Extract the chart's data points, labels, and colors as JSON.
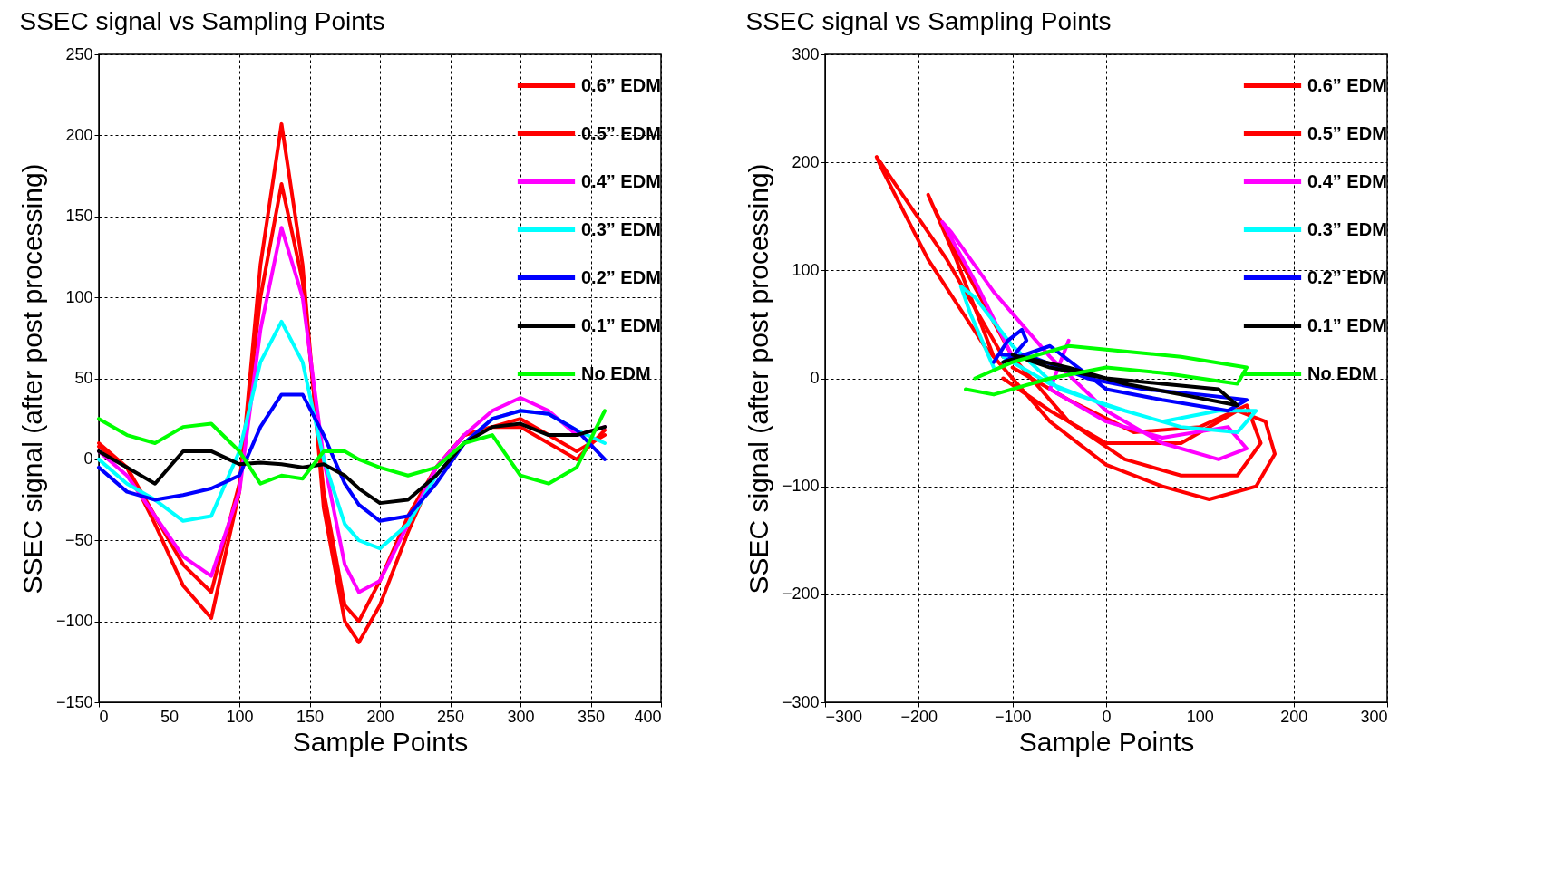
{
  "chart_data": [
    {
      "type": "line",
      "title": "SSEC signal vs Sampling Points",
      "xlabel": "Sample Points",
      "ylabel": "SSEC signal (after post processing)",
      "x": [
        0,
        20,
        40,
        60,
        80,
        100,
        115,
        130,
        145,
        160,
        175,
        185,
        200,
        220,
        240,
        260,
        280,
        300,
        320,
        340,
        360
      ],
      "xlim": [
        0,
        400
      ],
      "xticks": [
        0,
        50,
        100,
        150,
        200,
        250,
        300,
        350,
        400
      ],
      "ylim": [
        -150,
        250
      ],
      "yticks": [
        -150,
        -100,
        -50,
        0,
        50,
        100,
        150,
        200,
        250
      ],
      "grid": true,
      "legend": "top right",
      "line_style": "solid",
      "series": [
        {
          "name": "0.6” EDM",
          "color": "#ff0000",
          "values": [
            10,
            -5,
            -40,
            -78,
            -98,
            -20,
            120,
            207,
            120,
            -30,
            -100,
            -113,
            -90,
            -45,
            -5,
            15,
            20,
            25,
            15,
            5,
            15
          ]
        },
        {
          "name": "0.5” EDM",
          "color": "#ff0000",
          "values": [
            8,
            -5,
            -35,
            -65,
            -82,
            -15,
            100,
            170,
            110,
            -20,
            -90,
            -100,
            -75,
            -35,
            -5,
            15,
            20,
            20,
            10,
            0,
            18
          ]
        },
        {
          "name": "0.4” EDM",
          "color": "#ff00ff",
          "values": [
            5,
            -10,
            -35,
            -60,
            -72,
            -20,
            80,
            143,
            100,
            0,
            -65,
            -82,
            -75,
            -40,
            -5,
            15,
            30,
            38,
            30,
            15,
            20
          ]
        },
        {
          "name": "0.3” EDM",
          "color": "#00ffff",
          "values": [
            0,
            -15,
            -25,
            -38,
            -35,
            5,
            60,
            85,
            60,
            0,
            -40,
            -50,
            -55,
            -40,
            -10,
            10,
            25,
            30,
            28,
            18,
            10
          ]
        },
        {
          "name": "0.2” EDM",
          "color": "#0000ff",
          "values": [
            -5,
            -20,
            -25,
            -22,
            -18,
            -10,
            20,
            40,
            40,
            15,
            -15,
            -28,
            -38,
            -35,
            -15,
            10,
            25,
            30,
            28,
            18,
            0
          ]
        },
        {
          "name": "0.1” EDM",
          "color": "#000000",
          "values": [
            5,
            -5,
            -15,
            5,
            5,
            -3,
            -2,
            -3,
            -5,
            -3,
            -10,
            -18,
            -27,
            -25,
            -10,
            10,
            20,
            22,
            15,
            15,
            20
          ]
        },
        {
          "name": "No EDM",
          "color": "#00ff00",
          "values": [
            25,
            15,
            10,
            20,
            22,
            5,
            -15,
            -10,
            -12,
            5,
            5,
            0,
            -5,
            -10,
            -5,
            10,
            15,
            -10,
            -15,
            -5,
            30
          ]
        }
      ]
    },
    {
      "type": "line",
      "title": "SSEC signal vs Sampling Points",
      "xlabel": "Sample Points",
      "ylabel": "SSEC signal (after post processing)",
      "xlim": [
        -300,
        300
      ],
      "xticks": [
        -300,
        -200,
        -100,
        0,
        100,
        200,
        300
      ],
      "ylim": [
        -300,
        300
      ],
      "yticks": [
        -300,
        -200,
        -100,
        0,
        100,
        200,
        300
      ],
      "grid": true,
      "legend": "top right",
      "line_style": "solid",
      "series": [
        {
          "name": "0.6” EDM",
          "color": "#ff0000",
          "x": [
            -110,
            -170,
            -245,
            -240,
            -190,
            -130,
            -60,
            0,
            60,
            110,
            160,
            180,
            170,
            140,
            80,
            0,
            -60,
            -110
          ],
          "values": [
            20,
            110,
            205,
            195,
            110,
            30,
            -40,
            -80,
            -100,
            -112,
            -100,
            -70,
            -40,
            -30,
            -60,
            -60,
            -30,
            0
          ]
        },
        {
          "name": "0.5” EDM",
          "color": "#ff0000",
          "x": [
            -120,
            -160,
            -190,
            -185,
            -150,
            -100,
            -40,
            20,
            80,
            140,
            165,
            150,
            100,
            30,
            -40,
            -100
          ],
          "values": [
            20,
            110,
            170,
            160,
            100,
            20,
            -40,
            -75,
            -90,
            -90,
            -60,
            -25,
            -45,
            -50,
            -20,
            10
          ]
        },
        {
          "name": "0.4” EDM",
          "color": "#ff00ff",
          "x": [
            -100,
            -140,
            -175,
            -165,
            -120,
            -60,
            0,
            60,
            120,
            150,
            130,
            60,
            0,
            -60,
            -40
          ],
          "values": [
            20,
            90,
            145,
            135,
            80,
            20,
            -30,
            -60,
            -75,
            -65,
            -45,
            -55,
            -40,
            -10,
            35
          ]
        },
        {
          "name": "0.3” EDM",
          "color": "#00ffff",
          "x": [
            -120,
            -145,
            -155,
            -140,
            -100,
            -50,
            20,
            80,
            140,
            160,
            120,
            60,
            0,
            -60,
            -110
          ],
          "values": [
            10,
            60,
            85,
            75,
            30,
            -10,
            -30,
            -45,
            -50,
            -30,
            -30,
            -40,
            -25,
            -5,
            20
          ]
        },
        {
          "name": "0.2” EDM",
          "color": "#0000ff",
          "x": [
            -120,
            -105,
            -90,
            -85,
            -100,
            -110,
            -60,
            0,
            60,
            130,
            150,
            100,
            40,
            -20,
            -80,
            -112
          ],
          "values": [
            15,
            35,
            45,
            35,
            20,
            15,
            30,
            -10,
            -20,
            -30,
            -20,
            -15,
            -10,
            0,
            20,
            22
          ]
        },
        {
          "name": "0.1” EDM",
          "color": "#000000",
          "x": [
            -110,
            -90,
            -40,
            20,
            80,
            140,
            120,
            60,
            0,
            -60,
            -100
          ],
          "values": [
            15,
            20,
            10,
            -5,
            -15,
            -25,
            -10,
            -5,
            0,
            10,
            22
          ]
        },
        {
          "name": "No EDM",
          "color": "#00ff00",
          "x": [
            -140,
            -100,
            -40,
            20,
            80,
            150,
            140,
            60,
            0,
            -60,
            -120,
            -150
          ],
          "values": [
            0,
            15,
            30,
            25,
            20,
            10,
            -5,
            5,
            10,
            0,
            -15,
            -10
          ]
        }
      ]
    }
  ]
}
